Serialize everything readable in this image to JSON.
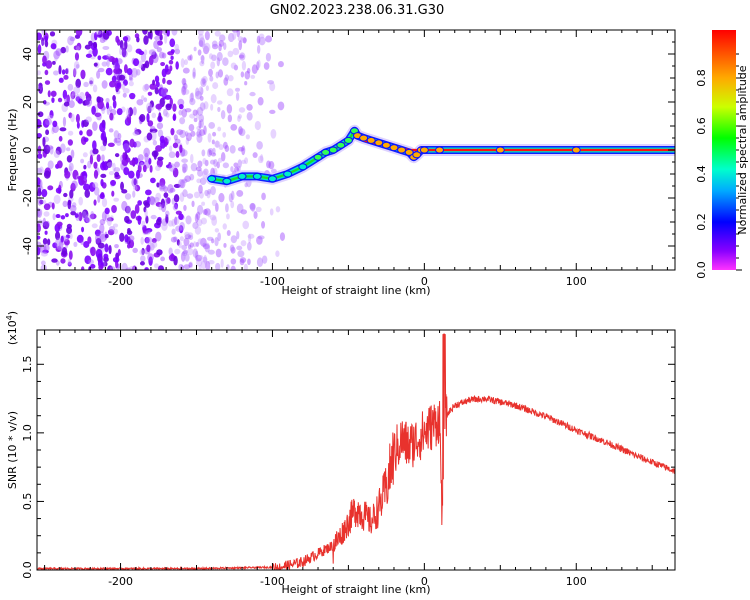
{
  "title": "GN02.2023.238.06.31.G30",
  "chart_data": [
    {
      "type": "heatmap",
      "xlabel": "Height of straight line (km)",
      "ylabel": "Frequency (Hz)",
      "xlim": [
        -255,
        165
      ],
      "ylim": [
        -50,
        50
      ],
      "xticks": [
        -200,
        -100,
        0,
        100
      ],
      "yticks": [
        -40,
        -20,
        0,
        20,
        40
      ],
      "colorbar": {
        "label": "Normalized spectral amplitude",
        "range": [
          0,
          1
        ],
        "ticks": [
          0.0,
          0.2,
          0.4,
          0.6,
          0.8
        ],
        "colormap": "rainbow (violet to red)"
      },
      "ridge": {
        "x": [
          -140,
          -130,
          -120,
          -110,
          -100,
          -90,
          -80,
          -70,
          -65,
          -60,
          -55,
          -50,
          -46,
          -44,
          -40,
          -35,
          -30,
          -25,
          -20,
          -15,
          -10,
          -7,
          -5,
          -2,
          0,
          10,
          50,
          100,
          165
        ],
        "y": [
          -12,
          -13,
          -11,
          -11,
          -12,
          -10,
          -7,
          -3,
          -1,
          0,
          2,
          4,
          8,
          6,
          5,
          4,
          3,
          2,
          1,
          0,
          -1,
          -3,
          -2,
          0,
          0,
          0,
          0,
          0,
          0
        ]
      }
    },
    {
      "type": "line",
      "xlabel": "Height of straight line (km)",
      "ylabel": "SNR (10 * v/v)",
      "yscale_label": "(x10",
      "yscale_exp": "4",
      "yscale_close": ")",
      "xlim": [
        -255,
        165
      ],
      "ylim": [
        0,
        1.75
      ],
      "xticks": [
        -200,
        -100,
        0,
        100
      ],
      "yticks": [
        0.0,
        0.5,
        1.0,
        1.5
      ],
      "ytick_labels": [
        "0.0",
        "0.5",
        "1.0",
        "1.5"
      ],
      "color": "#e8322d",
      "series": [
        {
          "x": [
            -255,
            -200,
            -150,
            -100,
            -90,
            -80,
            -70,
            -60,
            -55,
            -50,
            -45,
            -40,
            -35,
            -30,
            -25,
            -20,
            -15,
            -10,
            -5,
            0,
            5,
            10,
            12,
            14,
            16,
            20,
            30,
            40,
            60,
            80,
            100,
            120,
            140,
            165
          ],
          "y": [
            0.01,
            0.01,
            0.01,
            0.02,
            0.03,
            0.06,
            0.12,
            0.18,
            0.25,
            0.35,
            0.45,
            0.4,
            0.35,
            0.45,
            0.6,
            0.85,
            0.95,
            0.9,
            0.95,
            1.0,
            1.05,
            1.1,
            0.3,
            1.1,
            1.15,
            1.2,
            1.24,
            1.25,
            1.2,
            1.12,
            1.02,
            0.93,
            0.83,
            0.72
          ]
        }
      ]
    }
  ],
  "palette": {
    "axis": "#000000",
    "line": "#e8322d",
    "background": "#ffffff"
  }
}
